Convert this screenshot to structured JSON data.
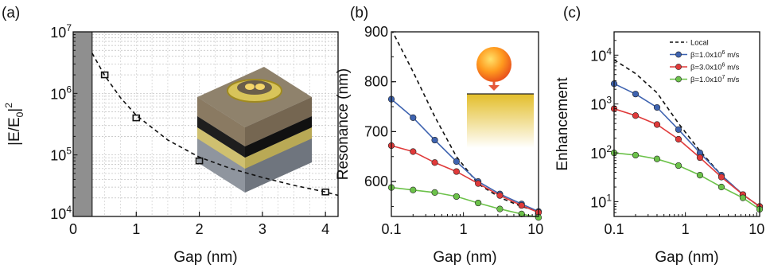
{
  "chart_data": [
    {
      "panel_label": "(a)",
      "type": "scatter",
      "xlabel": "Gap (nm)",
      "ylabel": "|E/E0|2",
      "ylabel_parts": {
        "main": "|E/E",
        "sub": "0",
        "tail": "|",
        "sup": "2"
      },
      "xlim": [
        0,
        4.2
      ],
      "ylim": [
        10000,
        10000000
      ],
      "yscale": "log",
      "x_ticks": [
        "0",
        "1",
        "2",
        "3",
        "4"
      ],
      "y_ticks": [
        {
          "base": "10",
          "exp": "4"
        },
        {
          "base": "10",
          "exp": "5"
        },
        {
          "base": "10",
          "exp": "6"
        },
        {
          "base": "10",
          "exp": "7"
        }
      ],
      "grid": true,
      "shaded_region_x": [
        0,
        0.3
      ],
      "points": {
        "x": [
          0.5,
          1,
          2,
          4
        ],
        "y": [
          2000000,
          400000,
          80000,
          25000
        ]
      },
      "fit_curve": {
        "style": "dashed",
        "x": [
          0.3,
          0.5,
          0.75,
          1,
          1.5,
          2,
          2.5,
          3,
          3.5,
          4,
          4.2
        ],
        "y": [
          4500000,
          1950000,
          850000,
          440000,
          175000,
          92000,
          60000,
          43000,
          32000,
          25000,
          22000
        ]
      },
      "inset_icon": "nanoparticle-on-mirror-3d-icon"
    },
    {
      "panel_label": "(b)",
      "type": "line",
      "xlabel": "Gap (nm)",
      "ylabel": "Resonance (nm)",
      "xscale": "log",
      "xlim": [
        0.1,
        11
      ],
      "ylim": [
        530,
        900
      ],
      "x_ticks": [
        "0.1",
        "1",
        "10"
      ],
      "y_ticks": [
        "600",
        "700",
        "800",
        "900"
      ],
      "series": [
        {
          "style": "dashed",
          "color": "#111111",
          "x": [
            0.1,
            0.2,
            0.4,
            0.8,
            1.6,
            3.2,
            6.4,
            11
          ],
          "y": [
            905,
            820,
            730,
            650,
            595,
            568,
            550,
            540
          ]
        },
        {
          "color": "#3e63b0",
          "x": [
            0.1,
            0.2,
            0.4,
            0.8,
            1.6,
            3.2,
            6.4,
            11
          ],
          "y": [
            765,
            728,
            683,
            640,
            600,
            575,
            555,
            540
          ]
        },
        {
          "color": "#e03a3a",
          "x": [
            0.1,
            0.2,
            0.4,
            0.8,
            1.6,
            3.2,
            6.4,
            11
          ],
          "y": [
            672,
            660,
            638,
            620,
            596,
            572,
            552,
            538
          ]
        },
        {
          "color": "#6cc24a",
          "x": [
            0.1,
            0.2,
            0.4,
            0.8,
            1.6,
            3.2,
            6.4,
            11
          ],
          "y": [
            588,
            583,
            578,
            570,
            557,
            545,
            535,
            528
          ]
        }
      ],
      "inset_icon": "sphere-above-film-icon"
    },
    {
      "panel_label": "(c)",
      "type": "line",
      "xlabel": "Gap (nm)",
      "ylabel": "Enhancement",
      "xscale": "log",
      "yscale": "log",
      "xlim": [
        0.1,
        11
      ],
      "ylim": [
        5,
        30000
      ],
      "x_ticks": [
        "0.1",
        "1",
        "10"
      ],
      "y_ticks": [
        {
          "base": "10",
          "exp": "1"
        },
        {
          "base": "10",
          "exp": "2"
        },
        {
          "base": "10",
          "exp": "3"
        },
        {
          "base": "10",
          "exp": "4"
        }
      ],
      "legend_position": "top-right",
      "series": [
        {
          "name": "Local",
          "style": "dashed",
          "color": "#111111",
          "x": [
            0.1,
            0.2,
            0.4,
            0.8,
            1.6,
            3.2,
            6.4,
            11
          ],
          "y": [
            8000,
            4200,
            1700,
            400,
            110,
            35,
            14,
            8
          ]
        },
        {
          "name": "β=1.0x106 m/s",
          "label_parts": {
            "pre": "β=1.0x10",
            "sup": "6",
            "post": " m/s"
          },
          "color": "#3e63b0",
          "x": [
            0.1,
            0.2,
            0.4,
            0.8,
            1.6,
            3.2,
            6.4,
            11
          ],
          "y": [
            2600,
            1600,
            850,
            300,
            100,
            35,
            14,
            8
          ]
        },
        {
          "name": "β=3.0x106 m/s",
          "label_parts": {
            "pre": "β=3.0x10",
            "sup": "6",
            "post": " m/s"
          },
          "color": "#e03a3a",
          "x": [
            0.1,
            0.2,
            0.4,
            0.8,
            1.6,
            3.2,
            6.4,
            11
          ],
          "y": [
            800,
            580,
            380,
            190,
            80,
            32,
            14,
            8
          ]
        },
        {
          "name": "β=1.0x107 m/s",
          "label_parts": {
            "pre": "β=1.0x10",
            "sup": "7",
            "post": " m/s"
          },
          "color": "#6cc24a",
          "x": [
            0.1,
            0.2,
            0.4,
            0.8,
            1.6,
            3.2,
            6.4,
            11
          ],
          "y": [
            100,
            90,
            75,
            55,
            35,
            20,
            12,
            7
          ]
        }
      ]
    }
  ]
}
